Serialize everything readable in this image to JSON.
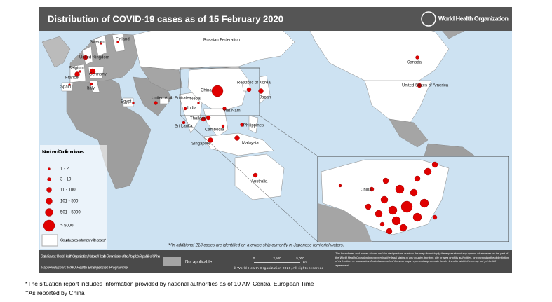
{
  "header": {
    "title": "Distribution of COVID-19 cases as of 15 February 2020",
    "logo": "World Health Organization"
  },
  "map": {
    "labels": [
      "Russian Federation",
      "Sweden",
      "Finland",
      "United Kingdom",
      "Belgium",
      "Germany",
      "France",
      "Spain",
      "Italy",
      "Egypt",
      "United Arab Emirates",
      "Nepal",
      "India",
      "Sri Lanka",
      "China",
      "Republic of Korea",
      "Japan",
      "Viet Nam",
      "Thailand",
      "Cambodia",
      "Philippines",
      "Singapore",
      "Malaysia",
      "Australia",
      "Canada",
      "United States of America",
      "China"
    ],
    "note": "*An additional 218 cases are identified on a cruise ship currently in Japanese territorial waters."
  },
  "legend": {
    "title": "Number of Confirmed cases",
    "items": [
      "1 - 2",
      "3 - 10",
      "11 - 100",
      "101 - 500",
      "501 - 5000",
      "> 5000"
    ],
    "area": "Country, area or territory with cases*",
    "not_applicable": "Not applicable"
  },
  "scale": {
    "ticks": [
      "0",
      "2,500",
      "5,000"
    ],
    "unit": "km"
  },
  "sources": {
    "data_source": "Data Source: World Health Organization, National Health Commission of the People's Republic of China",
    "map_production": "Map Production: WHO Health Emergencies Programme",
    "copyright": "© World Health Organization 2020, All rights reserved",
    "disclaimer": "The boundaries and names shown and the designations used on this map do not imply the expression of any opinion whatsoever on the part of the World Health Organization concerning the legal status of any country, territory, city or area or of its authorities, or concerning the delimitation of its frontiers or boundaries. Dotted and dashed lines on maps represent approximate border lines for which there may not yet be full agreement."
  },
  "footnotes": [
    "*The situation report includes information provided by national authorities as of 10 AM Central European Time",
    "†As reported by China"
  ]
}
